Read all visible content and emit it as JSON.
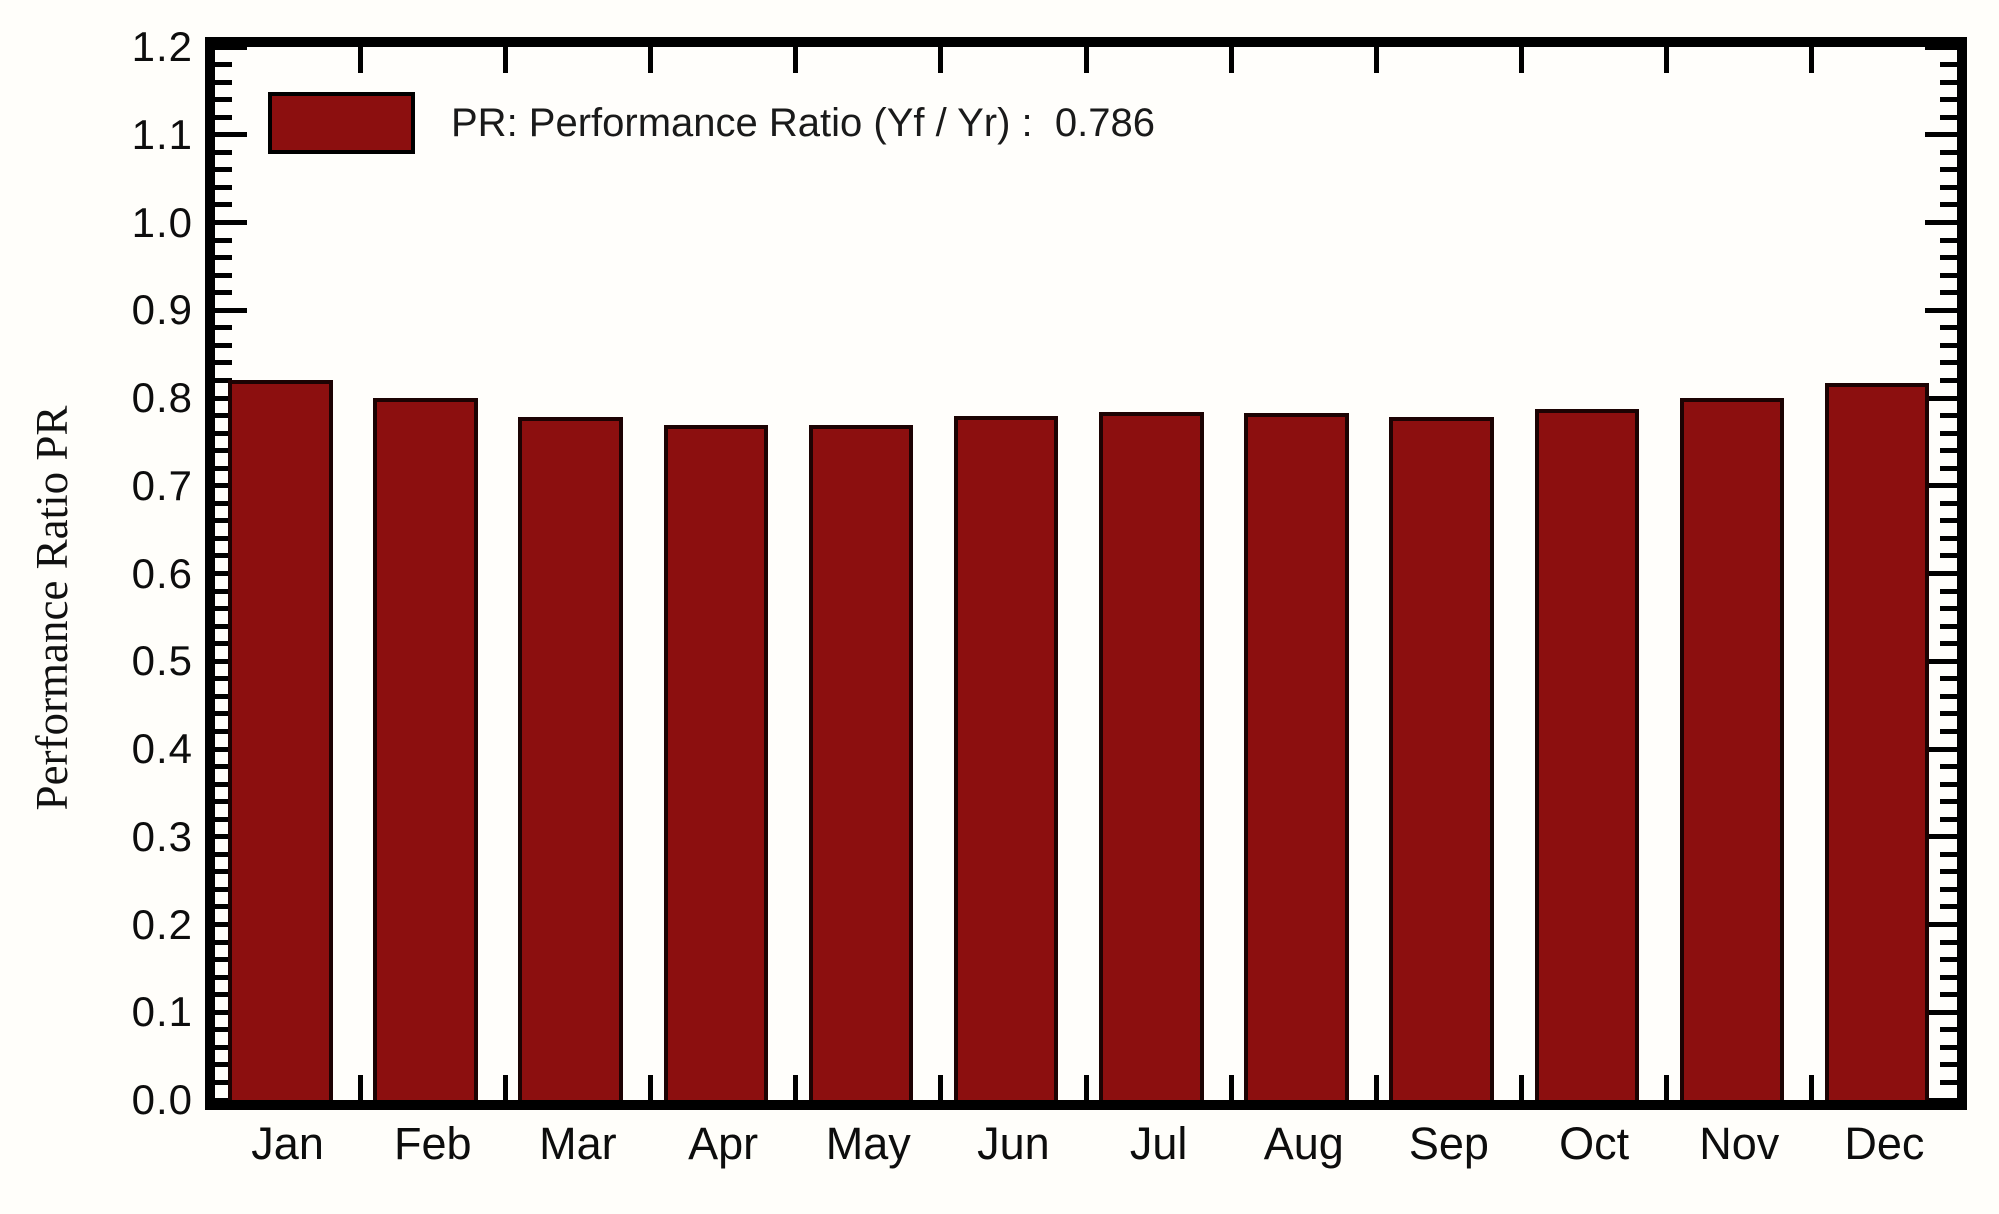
{
  "chart_data": {
    "type": "bar",
    "title": "",
    "categories": [
      "Jan",
      "Feb",
      "Mar",
      "Apr",
      "May",
      "Jun",
      "Jul",
      "Aug",
      "Sep",
      "Oct",
      "Nov",
      "Dec"
    ],
    "values": [
      0.82,
      0.8,
      0.778,
      0.769,
      0.769,
      0.78,
      0.784,
      0.783,
      0.778,
      0.788,
      0.8,
      0.817
    ],
    "xlabel": "",
    "ylabel": "Performance Ratio PR",
    "ylim": [
      0.0,
      1.2
    ],
    "ytick_step": 0.1,
    "yminor_step": 0.02,
    "ytick_labels": [
      "0.0",
      "0.1",
      "0.2",
      "0.3",
      "0.4",
      "0.5",
      "0.6",
      "0.7",
      "0.8",
      "0.9",
      "1.0",
      "1.1",
      "1.2"
    ],
    "grid": false,
    "legend_position": "top-left",
    "legend": {
      "label": "PR: Performance Ratio (Yf / Yr) :  0.786",
      "value": "0.786",
      "swatch_color": "#8C0F0F"
    },
    "colors": {
      "bar_fill": "#8C0F0F",
      "bar_edge": "#1c0303",
      "axis": "#000000",
      "text": "#0d0d0d",
      "background": "#fffefa"
    }
  }
}
